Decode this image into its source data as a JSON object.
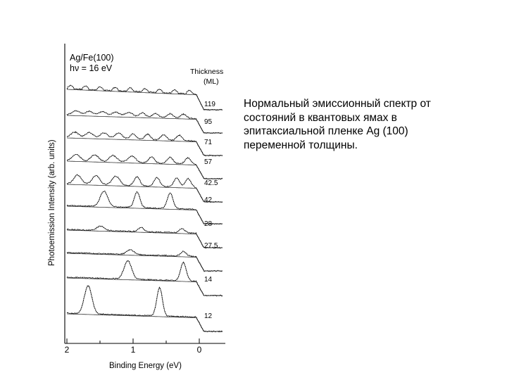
{
  "slide": {
    "caption": "Нормальный эмиссионный спектр от\nсостояний в квантовых ямах в\nэпитаксиальной пленке Ag (100)\nпеременной толщины."
  },
  "chart_data": {
    "type": "line",
    "title_lines": [
      "Ag/Fe(100)",
      "hν = 16 eV"
    ],
    "series_header": "Thickness",
    "series_header_unit": "(ML)",
    "xlabel": "Binding Energy (eV)",
    "ylabel": "Photoemission Intensity (arb. units)",
    "xlim": [
      2,
      -0.4
    ],
    "x_ticks": [
      2,
      1,
      0
    ],
    "x_reversed": true,
    "grid": false,
    "fermi_edge_eV": 0.05,
    "series": [
      {
        "name": "119",
        "peaks_eV": [],
        "peak_height": 0.0,
        "oscillation": 0.15
      },
      {
        "name": "95",
        "peaks_eV": [
          1.86,
          1.66,
          1.46,
          1.26,
          1.06,
          0.86,
          0.66,
          0.44,
          0.24
        ],
        "peak_height": 0.45
      },
      {
        "name": "71",
        "peaks_eV": [
          1.88,
          1.66,
          1.44,
          1.22,
          1.0,
          0.78,
          0.54,
          0.3
        ],
        "peak_height": 0.55
      },
      {
        "name": "57",
        "peaks_eV": [
          1.86,
          1.58,
          1.3,
          1.02,
          0.72,
          0.44,
          0.17
        ],
        "peak_height": 0.6
      },
      {
        "name": "42.5",
        "peaks_eV": [
          1.84,
          1.56,
          1.26,
          0.94,
          0.64,
          0.34,
          0.17
        ],
        "peak_height": 0.75
      },
      {
        "name": "42",
        "peaks_eV": [
          1.44,
          0.94,
          0.44
        ],
        "peak_height": 1.0
      },
      {
        "name": "28",
        "peaks_eV": [
          1.49,
          0.88,
          0.26
        ],
        "peak_height": 0.5
      },
      {
        "name": "27.5",
        "peaks_eV": [
          1.04,
          0.24
        ],
        "peak_height": 0.55
      },
      {
        "name": "14",
        "peaks_eV": [
          1.08,
          0.24
        ],
        "peak_height": 1.0
      },
      {
        "name": "12",
        "peaks_eV": [
          1.68,
          0.6
        ],
        "peak_height": 1.25
      }
    ]
  }
}
